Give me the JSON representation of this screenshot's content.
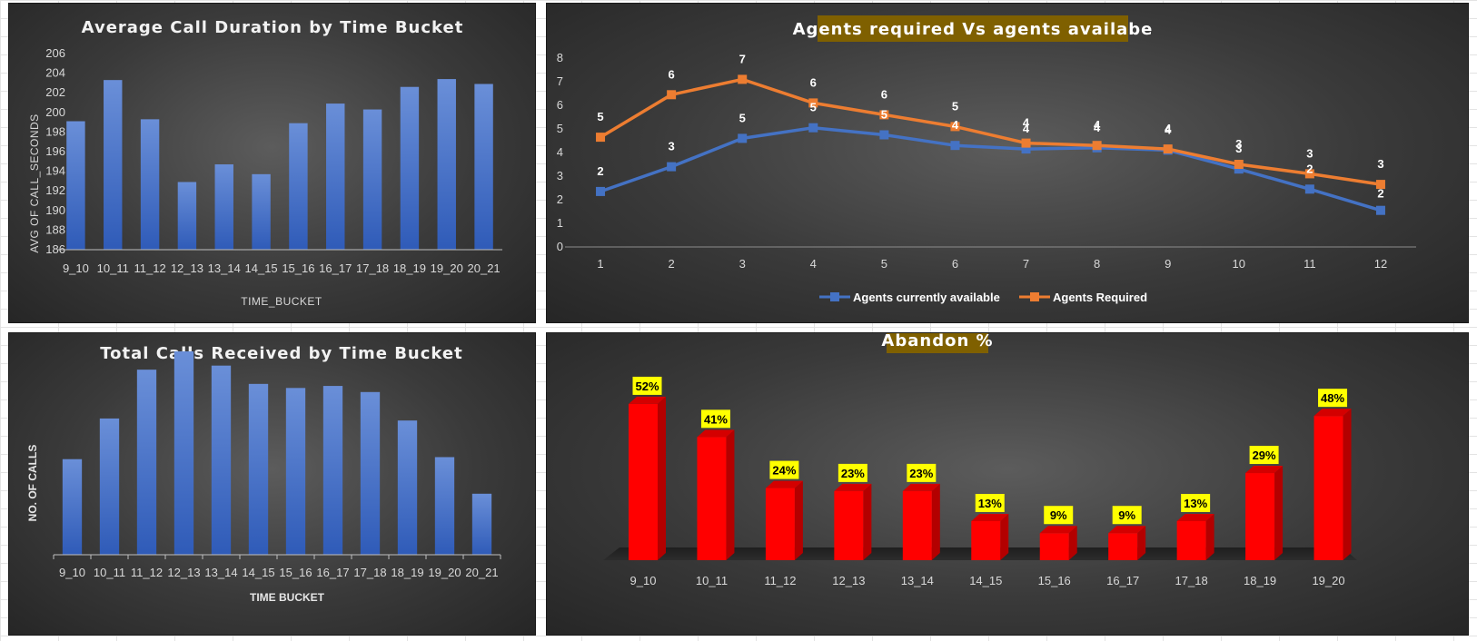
{
  "colors": {
    "bar_blue_top": "#6a8fd8",
    "bar_blue_bottom": "#2f5bb8",
    "series_available": "#4472c4",
    "series_required": "#ed7d31",
    "title_box": "#7f6000",
    "bar_red": "#ff0000",
    "bar_red_side": "#b30000",
    "bar_red_top": "#d40000",
    "label_box": "#ffff00"
  },
  "chart_data": [
    {
      "id": "avg_duration",
      "type": "bar",
      "title": "Average Call Duration by Time Bucket",
      "xlabel": "TIME_BUCKET",
      "ylabel": "AVG OF CALL_SECONDS",
      "categories": [
        "9_10",
        "10_11",
        "11_12",
        "12_13",
        "13_14",
        "14_15",
        "15_16",
        "16_17",
        "17_18",
        "18_19",
        "19_20",
        "20_21"
      ],
      "values": [
        199.1,
        203.3,
        199.3,
        192.9,
        194.7,
        193.7,
        198.9,
        200.9,
        200.3,
        202.6,
        203.4,
        202.9
      ],
      "ylim": [
        186,
        206
      ],
      "yticks": [
        "186",
        "188",
        "190",
        "192",
        "194",
        "196",
        "198",
        "200",
        "202",
        "204",
        "206"
      ],
      "grid": false,
      "legend": "none"
    },
    {
      "id": "agents",
      "type": "line",
      "title": "Agents required Vs agents availabe",
      "x": [
        "1",
        "2",
        "3",
        "4",
        "5",
        "6",
        "7",
        "8",
        "9",
        "10",
        "11",
        "12"
      ],
      "ylim": [
        0,
        8
      ],
      "yticks": [
        "0",
        "1",
        "2",
        "3",
        "4",
        "5",
        "6",
        "7",
        "8"
      ],
      "series": [
        {
          "name": "Agents currently available",
          "values": [
            2.35,
            3.4,
            4.6,
            5.05,
            4.75,
            4.3,
            4.15,
            4.2,
            4.1,
            3.3,
            2.45,
            1.55
          ],
          "labels": [
            "2",
            "3",
            "5",
            "5",
            "5",
            "4",
            "4",
            "4",
            "4",
            "3",
            "2",
            "2"
          ]
        },
        {
          "name": "Agents Required",
          "values": [
            4.65,
            6.45,
            7.1,
            6.1,
            5.6,
            5.1,
            4.4,
            4.3,
            4.15,
            3.5,
            3.1,
            2.65
          ],
          "labels": [
            "5",
            "6",
            "7",
            "6",
            "6",
            "5",
            "4",
            "4",
            "4",
            "3",
            "3",
            "3"
          ]
        }
      ],
      "grid": false,
      "legend": "bottom"
    },
    {
      "id": "total_calls",
      "type": "bar",
      "title": "Total Calls Received by Time Bucket",
      "xlabel": "TIME BUCKET",
      "ylabel": "NO. OF CALLS",
      "categories": [
        "9_10",
        "10_11",
        "11_12",
        "12_13",
        "13_14",
        "14_15",
        "15_16",
        "16_17",
        "17_18",
        "18_19",
        "19_20",
        "20_21"
      ],
      "values": [
        47,
        67,
        91,
        100,
        93,
        84,
        82,
        83,
        80,
        66,
        48,
        30
      ],
      "ylim": [
        0,
        100
      ],
      "grid": false,
      "legend": "none"
    },
    {
      "id": "abandon",
      "type": "bar",
      "title": "Abandon %",
      "categories": [
        "9_10",
        "10_11",
        "11_12",
        "12_13",
        "13_14",
        "14_15",
        "15_16",
        "16_17",
        "17_18",
        "18_19",
        "19_20"
      ],
      "values": [
        52,
        41,
        24,
        23,
        23,
        13,
        9,
        9,
        13,
        29,
        48
      ],
      "labels": [
        "52%",
        "41%",
        "24%",
        "23%",
        "23%",
        "13%",
        "9%",
        "9%",
        "13%",
        "29%",
        "48%"
      ],
      "ylim": [
        0,
        55
      ],
      "grid": false,
      "legend": "none"
    }
  ]
}
